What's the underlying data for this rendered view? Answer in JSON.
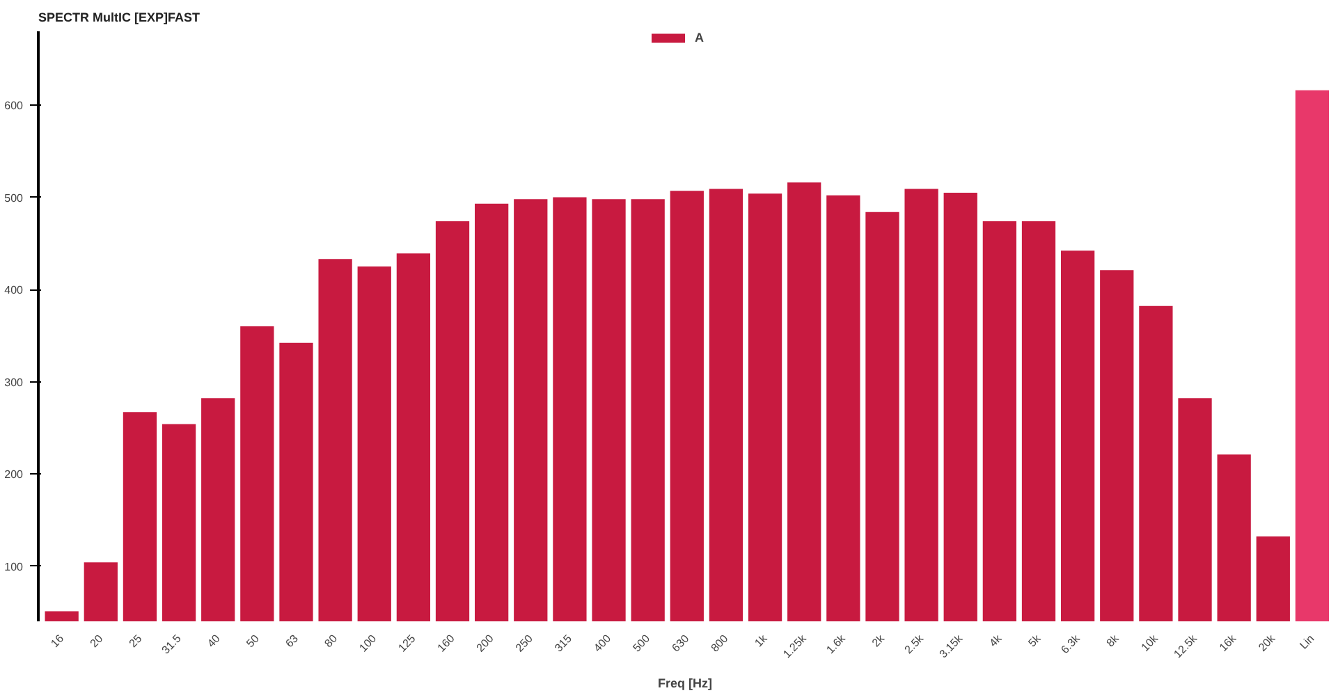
{
  "chart_data": {
    "type": "bar",
    "title": "SPECTR MultIC [EXP]FAST",
    "xlabel": "Freq [Hz]",
    "categories": [
      "16",
      "20",
      "25",
      "31.5",
      "40",
      "50",
      "63",
      "80",
      "100",
      "125",
      "160",
      "200",
      "250",
      "315",
      "400",
      "500",
      "630",
      "800",
      "1k",
      "1.25k",
      "1.6k",
      "2k",
      "2.5k",
      "3.15k",
      "4k",
      "5k",
      "6.3k",
      "8k",
      "10k",
      "12.5k",
      "16k",
      "20k",
      "Lin"
    ],
    "series": [
      {
        "name": "A",
        "color": "#c81a40",
        "colors": [
          "#c81a40",
          "#c81a40",
          "#c81a40",
          "#c81a40",
          "#c81a40",
          "#c81a40",
          "#c81a40",
          "#c81a40",
          "#c81a40",
          "#c81a40",
          "#c81a40",
          "#c81a40",
          "#c81a40",
          "#c81a40",
          "#c81a40",
          "#c81a40",
          "#c81a40",
          "#c81a40",
          "#c81a40",
          "#c81a40",
          "#c81a40",
          "#c81a40",
          "#c81a40",
          "#c81a40",
          "#c81a40",
          "#c81a40",
          "#c81a40",
          "#c81a40",
          "#c81a40",
          "#c81a40",
          "#c81a40",
          "#c81a40",
          "#e8386a"
        ],
        "values": [
          51,
          104,
          267,
          254,
          282,
          360,
          342,
          433,
          425,
          439,
          474,
          493,
          498,
          500,
          498,
          498,
          507,
          509,
          504,
          516,
          502,
          484,
          509,
          505,
          474,
          474,
          442,
          421,
          382,
          282,
          221,
          132,
          616
        ]
      }
    ],
    "ylim": [
      40,
      680
    ],
    "yticks": [
      100,
      200,
      300,
      400,
      500,
      600
    ],
    "grid": false,
    "legend": "top"
  }
}
